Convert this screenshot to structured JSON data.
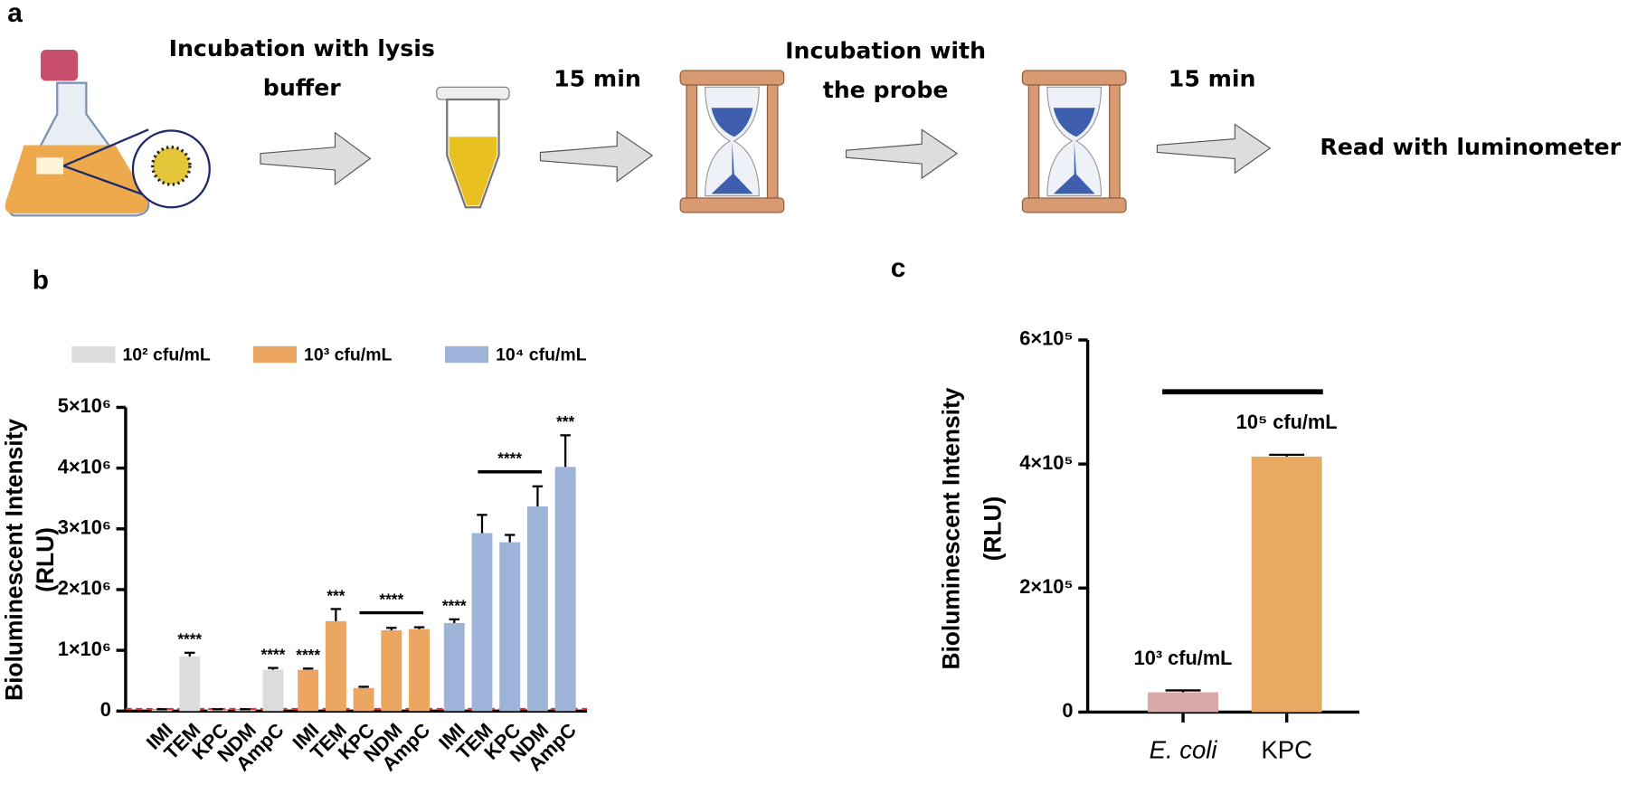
{
  "panels": [
    "a",
    "b",
    "c"
  ],
  "workflow": {
    "steps": [
      [
        "Incubation with lysis",
        "buffer"
      ],
      [
        "15 min"
      ],
      [
        "Incubation with",
        "the probe"
      ],
      [
        "15 min"
      ],
      [
        "Read with luminometer"
      ]
    ]
  },
  "chart_data": [
    {
      "type": "bar",
      "ylabel": [
        "Bioluminescent Intensity",
        "(RLU)"
      ],
      "categories": [
        "IMI",
        "TEM",
        "KPC",
        "NDM",
        "AmpC"
      ],
      "series": [
        {
          "name": "10² cfu/mL",
          "color": "#dcdcdc",
          "values": [
            20000,
            900000,
            20000,
            20000,
            680000
          ],
          "errors": [
            10000,
            60000,
            10000,
            10000,
            30000
          ],
          "significance": [
            null,
            "****",
            null,
            null,
            "****"
          ]
        },
        {
          "name": "10³ cfu/mL",
          "color": "#eba762",
          "values": [
            680000,
            1480000,
            380000,
            1330000,
            1350000
          ],
          "errors": [
            20000,
            200000,
            20000,
            40000,
            30000
          ],
          "significance": [
            "****",
            "***",
            null,
            null,
            null
          ],
          "bracket_label": "****"
        },
        {
          "name": "10⁴ cfu/mL",
          "color": "#9db4d8",
          "values": [
            1450000,
            2930000,
            2780000,
            3370000,
            4020000
          ],
          "errors": [
            60000,
            300000,
            120000,
            330000,
            520000
          ],
          "significance": [
            "****",
            null,
            null,
            null,
            "***"
          ],
          "bracket_label": "****"
        }
      ],
      "ylim": [
        0,
        5000000
      ],
      "yticks": [
        0,
        {
          "value": 1000000,
          "label": "1×10⁶"
        },
        {
          "value": 2000000,
          "label": "2×10⁶"
        },
        {
          "value": 3000000,
          "label": "3×10⁶"
        },
        {
          "value": 4000000,
          "label": "4×10⁶"
        },
        {
          "value": 5000000,
          "label": "5×10⁶"
        }
      ]
    },
    {
      "type": "bar",
      "ylabel": [
        "Bioluminescent Intensity",
        "(RLU)"
      ],
      "categories": [
        "E. coli",
        "KPC"
      ],
      "values": [
        32000,
        412000
      ],
      "errors": [
        3000,
        3000
      ],
      "colors": [
        "#d9a8a8",
        "#e8a962"
      ],
      "bar_labels": [
        "10³ cfu/mL",
        "10⁵ cfu/mL"
      ],
      "ylim": [
        0,
        600000
      ],
      "yticks": [
        0,
        {
          "value": 200000,
          "label": "2×10⁵"
        },
        {
          "value": 400000,
          "label": "4×10⁵"
        },
        {
          "value": 600000,
          "label": "6×10⁵"
        }
      ]
    }
  ]
}
